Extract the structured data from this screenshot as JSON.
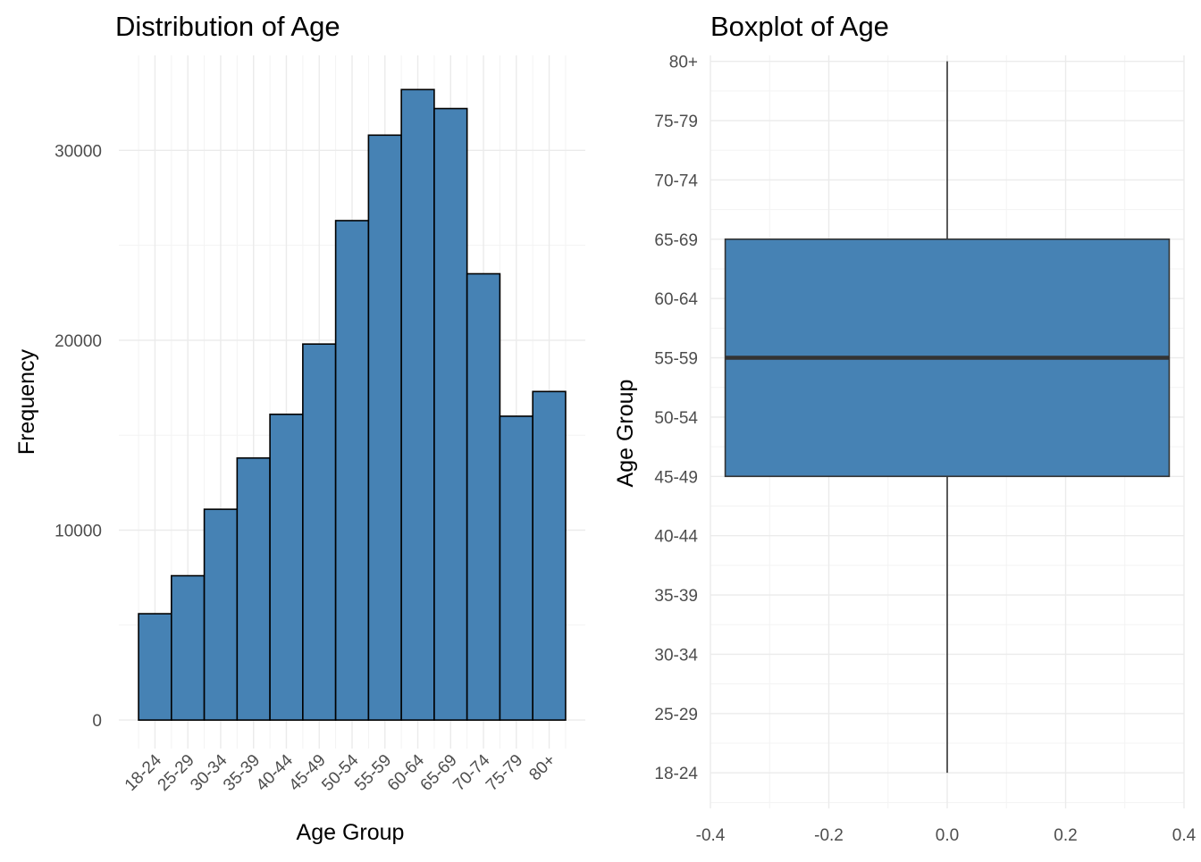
{
  "chart_data": [
    {
      "type": "bar",
      "title": "Distribution of Age",
      "xlabel": "Age Group",
      "ylabel": "Frequency",
      "categories": [
        "18-24",
        "25-29",
        "30-34",
        "35-39",
        "40-44",
        "45-49",
        "50-54",
        "55-59",
        "60-64",
        "65-69",
        "70-74",
        "75-79",
        "80+"
      ],
      "values": [
        5600,
        7600,
        11100,
        13800,
        16100,
        19800,
        26300,
        30800,
        33200,
        32200,
        23500,
        16000,
        17300
      ],
      "yticks": [
        0,
        10000,
        20000,
        30000
      ],
      "ytick_labels": [
        "0",
        "10000",
        "20000",
        "30000"
      ],
      "ylim": [
        -1500,
        35000
      ],
      "fill": "#4682B4",
      "edge": "#000000",
      "grid": true
    },
    {
      "type": "boxplot",
      "title": "Boxplot of Age",
      "ylabel": "Age Group",
      "xlabel": "",
      "categories": [
        "18-24",
        "25-29",
        "30-34",
        "35-39",
        "40-44",
        "45-49",
        "50-54",
        "55-59",
        "60-64",
        "65-69",
        "70-74",
        "75-79",
        "80+"
      ],
      "box": {
        "min": "18-24",
        "q1": "45-49",
        "median": "55-59",
        "q3": "65-69",
        "max": "80+",
        "box_width": 0.75
      },
      "xticks": [
        -0.4,
        -0.2,
        0.0,
        0.2,
        0.4
      ],
      "xtick_labels": [
        "-0.4",
        "-0.2",
        "0.0",
        "0.2",
        "0.4"
      ],
      "xlim": [
        -0.4,
        0.4
      ],
      "fill": "#4682B4",
      "edge": "#333333",
      "grid": true
    }
  ]
}
